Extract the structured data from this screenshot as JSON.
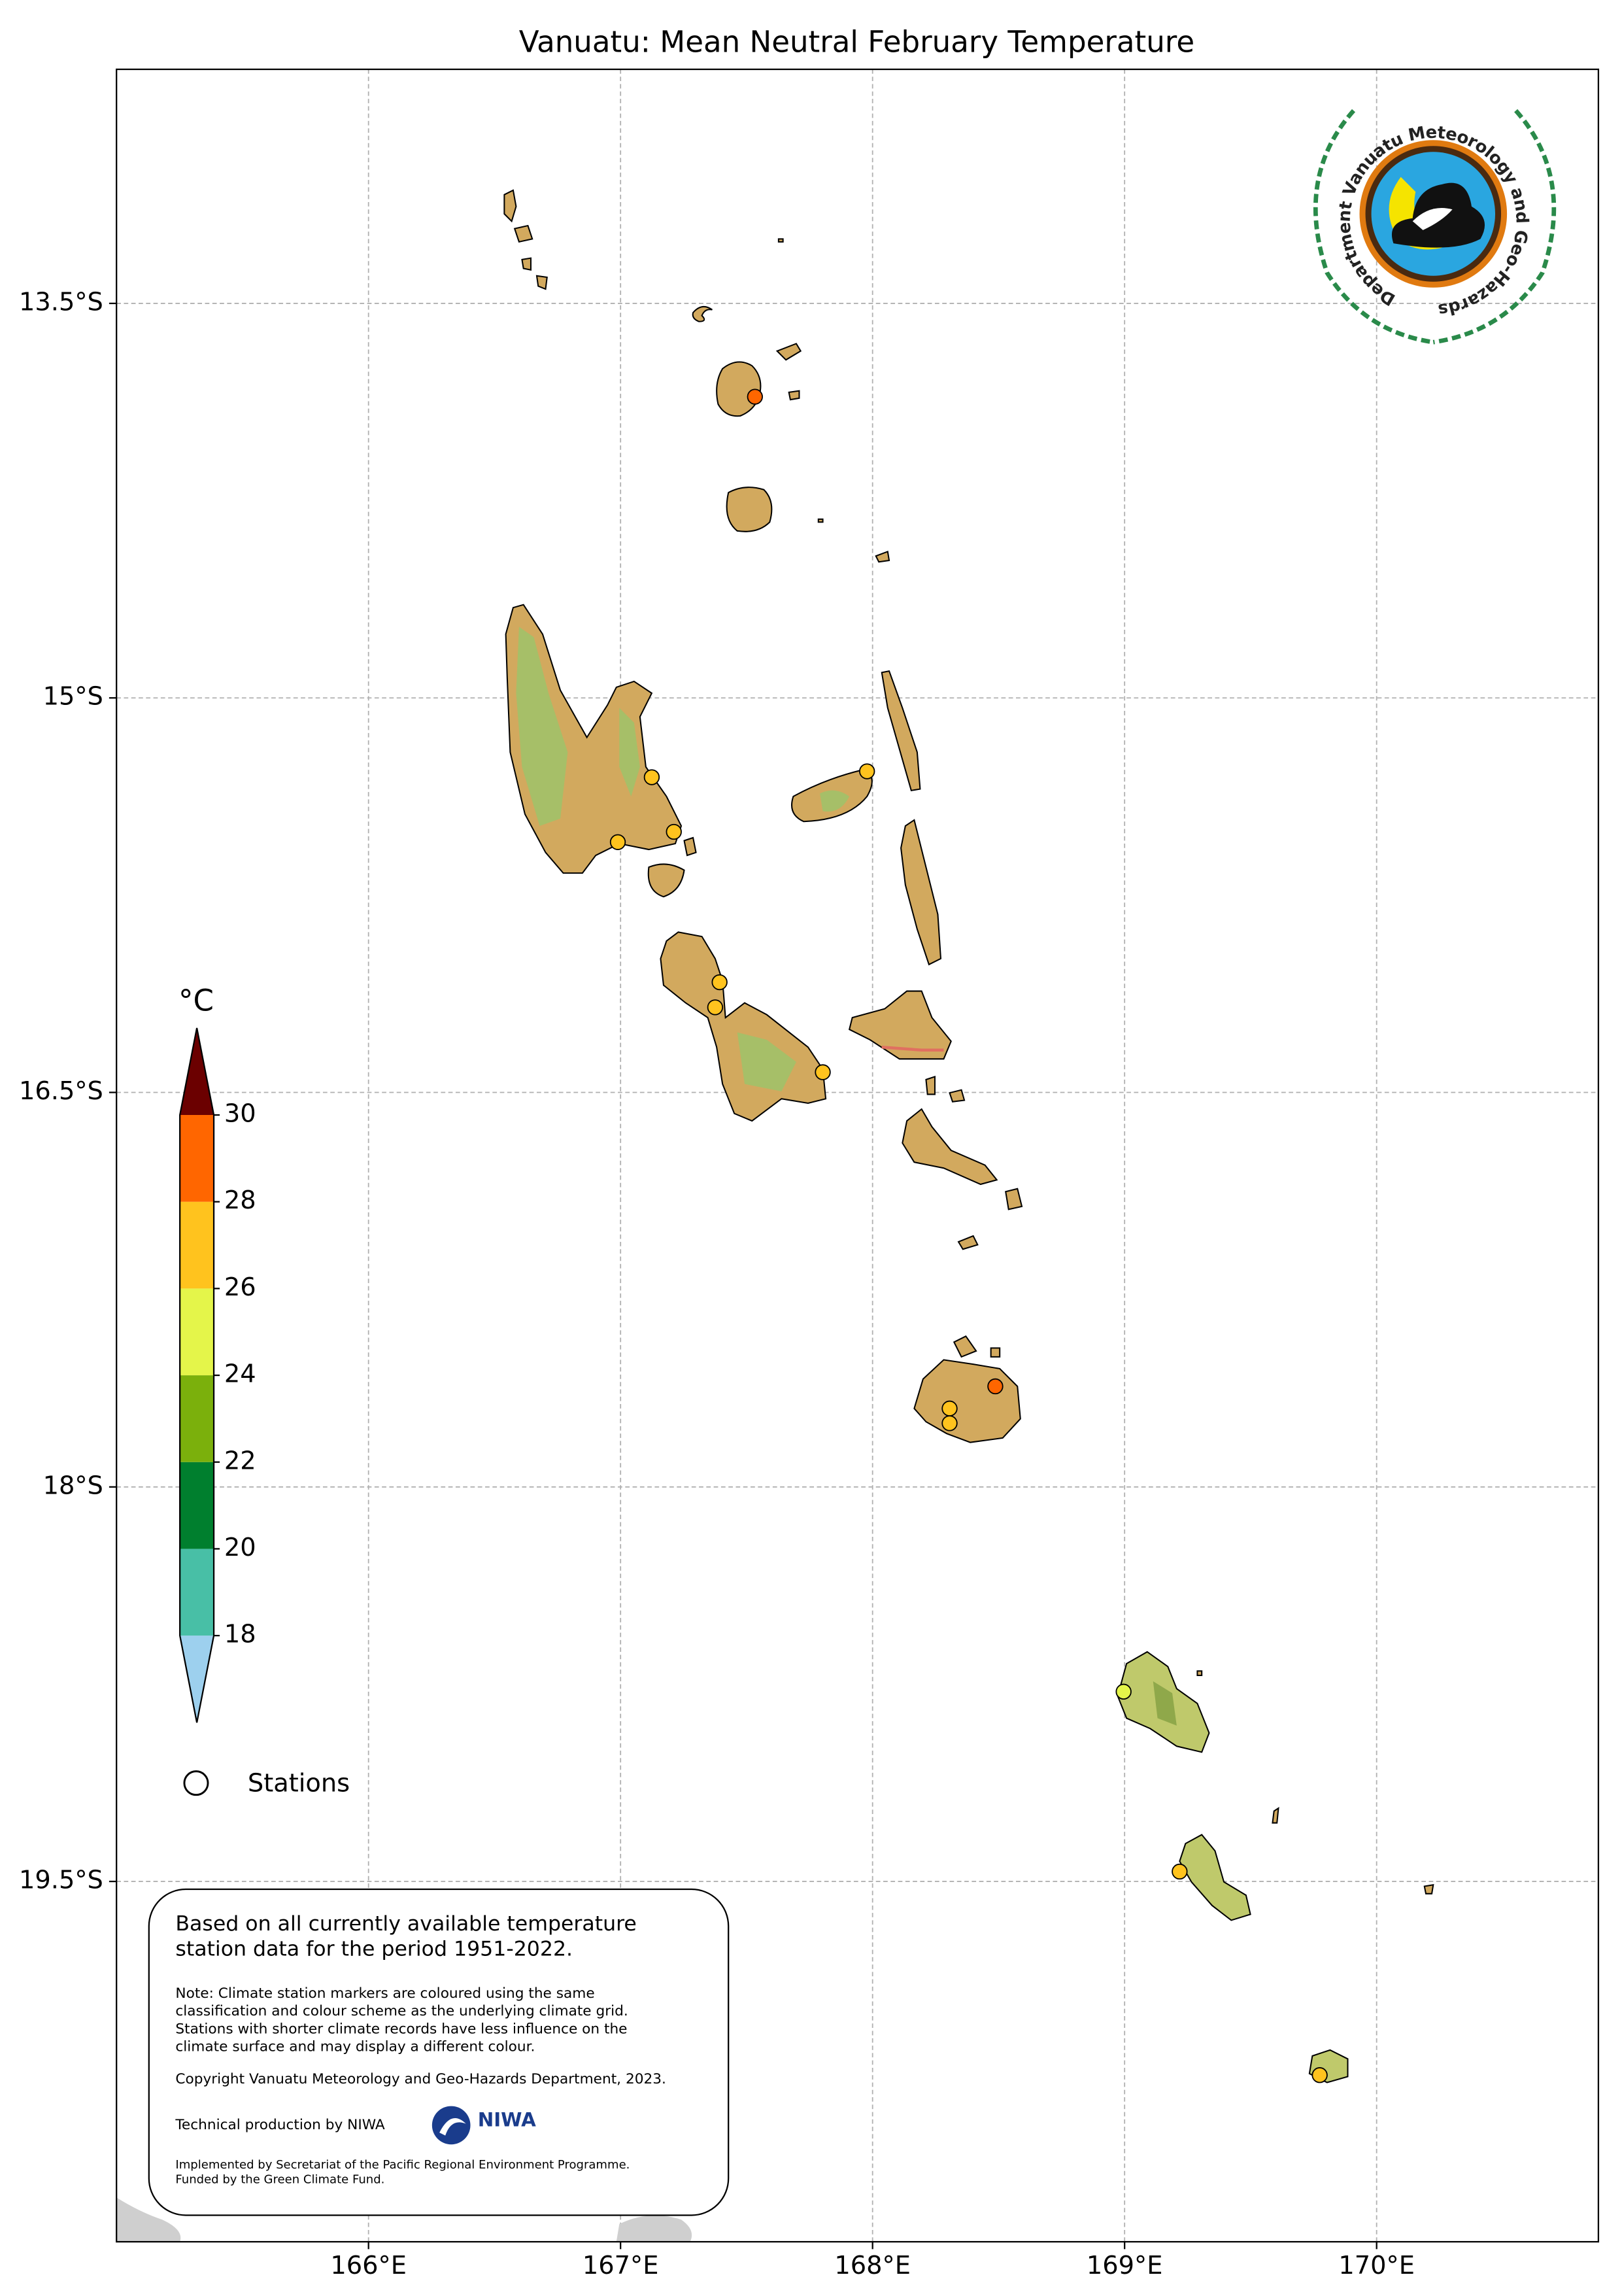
{
  "chart_data": {
    "type": "map",
    "title": "Vanuatu: Mean Neutral February Temperature",
    "xlim": [
      165.0,
      170.88
    ],
    "ylim": [
      -20.87,
      -12.61
    ],
    "xticks": [
      {
        "value": 166,
        "label": "166°E"
      },
      {
        "value": 167,
        "label": "167°E"
      },
      {
        "value": 168,
        "label": "168°E"
      },
      {
        "value": 169,
        "label": "169°E"
      },
      {
        "value": 170,
        "label": "170°E"
      }
    ],
    "yticks": [
      {
        "value": -13.5,
        "label": "13.5°S"
      },
      {
        "value": -15,
        "label": "15°S"
      },
      {
        "value": -16.5,
        "label": "16.5°S"
      },
      {
        "value": -18,
        "label": "18°S"
      },
      {
        "value": -19.5,
        "label": "19.5°S"
      }
    ],
    "grid": true,
    "colorbar": {
      "unit": "°C",
      "ticks": [
        18,
        20,
        22,
        24,
        26,
        28,
        30
      ],
      "colors": [
        "#9dd0ee",
        "#48bfa6",
        "#007f2e",
        "#7bb00c",
        "#e4f54a",
        "#ffc31e",
        "#ff6600",
        "#6b0000"
      ]
    },
    "legend": {
      "stations": "Stations"
    },
    "info_box": {
      "summary": [
        "Based on all currently available temperature",
        "station data for the period 1951-2022."
      ],
      "note": [
        "Note: Climate station markers are coloured using the same",
        "classification and colour scheme as the underlying climate grid.",
        "Stations with shorter climate records have less influence on the",
        "climate surface and may display a different colour."
      ],
      "copyright": "Copyright Vanuatu Meteorology and Geo-Hazards Department, 2023.",
      "technical": "Technical production by NIWA",
      "niwa": "NIWA",
      "implemented": [
        "Implemented by Secretariat of the Pacific Regional Environment Programme.",
        "Funded by the Green Climate Fund."
      ]
    },
    "logo": {
      "text": "Department Vanuatu Meteorology and Geo-Hazards"
    }
  }
}
